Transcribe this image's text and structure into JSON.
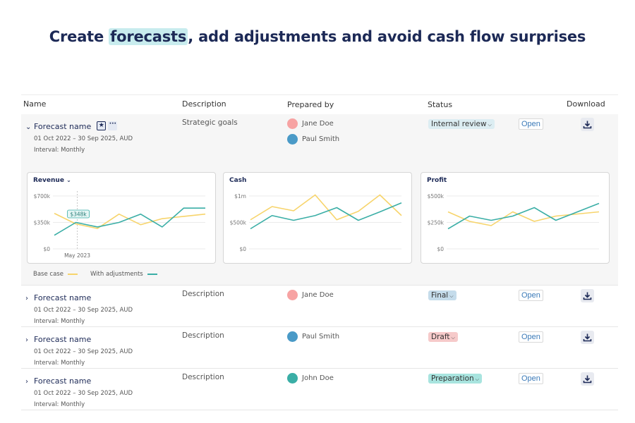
{
  "headline": {
    "before": "Create ",
    "highlight": "forecasts",
    "after": ", add adjustments and avoid cash flow surprises"
  },
  "colors": {
    "base_case": "#f7d46b",
    "with_adjustments": "#3aaea6",
    "highlight": "#c8ecee"
  },
  "table": {
    "headers": {
      "name": "Name",
      "description": "Description",
      "prepared_by": "Prepared by",
      "status": "Status",
      "download": "Download"
    },
    "rows": [
      {
        "name": "Forecast name",
        "period": "01 Oct 2022 – 30 Sep 2025, AUD",
        "interval": "Interval: Monthly",
        "description": "Strategic goals",
        "people": [
          {
            "name": "Jane Doe",
            "color": "#f7a3a3"
          },
          {
            "name": "Paul Smith",
            "color": "#4a9ac7"
          }
        ],
        "status": "Internal review",
        "status_color": "#dcedf2",
        "open_label": "Open",
        "expanded": true
      },
      {
        "name": "Forecast name",
        "period": "01 Oct 2022 – 30 Sep 2025, AUD",
        "interval": "Interval: Monthly",
        "description": "Description",
        "people": [
          {
            "name": "Jane Doe",
            "color": "#f7a3a3"
          }
        ],
        "status": "Final",
        "status_color": "#c5dceb",
        "open_label": "Open"
      },
      {
        "name": "Forecast name",
        "period": "01 Oct 2022 – 30 Sep 2025, AUD",
        "interval": "Interval: Monthly",
        "description": "Description",
        "people": [
          {
            "name": "Paul Smith",
            "color": "#4a9ac7"
          }
        ],
        "status": "Draft",
        "status_color": "#f6caca",
        "open_label": "Open"
      },
      {
        "name": "Forecast name",
        "period": "01 Oct 2022 – 30 Sep 2025, AUD",
        "interval": "Interval: Monthly",
        "description": "Description",
        "people": [
          {
            "name": "John Doe",
            "color": "#3aaea6"
          }
        ],
        "status": "Preparation",
        "status_color": "#a8e4df",
        "open_label": "Open"
      }
    ]
  },
  "legend": {
    "base_case": "Base case",
    "with_adjustments": "With adjustments"
  },
  "chart_data": [
    {
      "type": "line",
      "title": "Revenue",
      "has_dropdown": true,
      "ylim": [
        0,
        700000
      ],
      "yticks": [
        "$0",
        "$350k",
        "$700k"
      ],
      "tooltip": {
        "label": "$348k",
        "x_label": "May 2023",
        "index": 1
      },
      "series": [
        {
          "name": "Base case",
          "values": [
            470000,
            330000,
            270000,
            460000,
            320000,
            400000,
            430000,
            460000
          ]
        },
        {
          "name": "With adjustments",
          "values": [
            180000,
            350000,
            290000,
            350000,
            460000,
            290000,
            540000,
            540000
          ]
        }
      ]
    },
    {
      "type": "line",
      "title": "Cash",
      "ylim": [
        0,
        1000000
      ],
      "yticks": [
        "$0",
        "$500k",
        "$1m"
      ],
      "series": [
        {
          "name": "Base case",
          "values": [
            550000,
            800000,
            720000,
            1020000,
            550000,
            710000,
            1020000,
            630000
          ]
        },
        {
          "name": "With adjustments",
          "values": [
            380000,
            630000,
            540000,
            630000,
            780000,
            540000,
            700000,
            870000
          ]
        }
      ]
    },
    {
      "type": "line",
      "title": "Profit",
      "ylim": [
        0,
        500000
      ],
      "yticks": [
        "$0",
        "$250k",
        "$500k"
      ],
      "series": [
        {
          "name": "Base case",
          "values": [
            350000,
            260000,
            220000,
            350000,
            260000,
            310000,
            330000,
            350000
          ]
        },
        {
          "name": "With adjustments",
          "values": [
            190000,
            310000,
            270000,
            310000,
            390000,
            270000,
            350000,
            430000
          ]
        }
      ]
    }
  ]
}
